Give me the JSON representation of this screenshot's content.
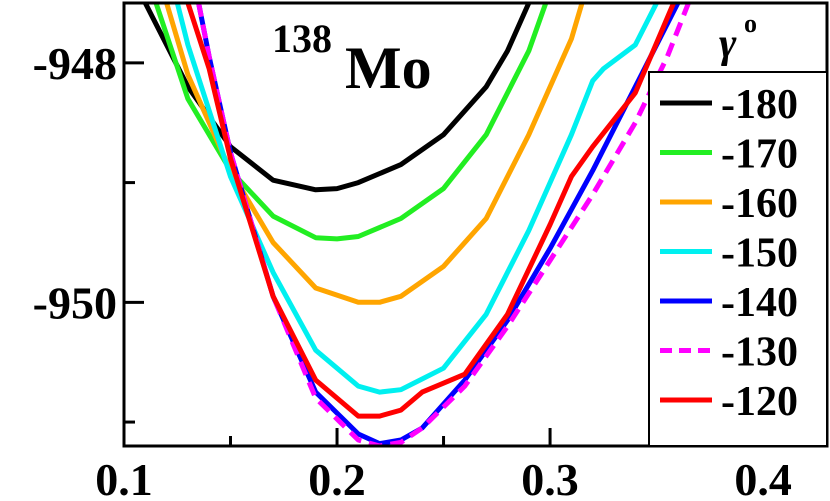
{
  "chart_data": {
    "type": "line",
    "title_mass": "138",
    "title_element": "Mo",
    "xlabel": "",
    "ylabel": "",
    "xlim": [
      0.1,
      0.43
    ],
    "ylim": [
      -951.2,
      -947.5
    ],
    "x_ticks": [
      0.1,
      0.2,
      0.3,
      0.4
    ],
    "x_tick_labels": [
      "0.1",
      "0.2",
      "0.3",
      "0.4"
    ],
    "y_ticks": [
      -948,
      -950
    ],
    "y_tick_labels": [
      "-948",
      "-950"
    ],
    "legend_title": "γ",
    "legend_title_sup": "o",
    "legend_position": "right",
    "series": [
      {
        "name": "-180",
        "color": "#000000",
        "dash": false,
        "x": [
          0.11,
          0.13,
          0.15,
          0.17,
          0.19,
          0.2,
          0.21,
          0.23,
          0.25,
          0.27,
          0.28,
          0.29
        ],
        "y": [
          -947.5,
          -948.2,
          -948.7,
          -948.98,
          -949.06,
          -949.05,
          -949.0,
          -948.85,
          -948.6,
          -948.2,
          -947.9,
          -947.5
        ]
      },
      {
        "name": "-170",
        "color": "#22ee22",
        "dash": false,
        "x": [
          0.115,
          0.13,
          0.15,
          0.17,
          0.19,
          0.2,
          0.21,
          0.23,
          0.25,
          0.27,
          0.29,
          0.298
        ],
        "y": [
          -947.5,
          -948.3,
          -948.9,
          -949.28,
          -949.46,
          -949.47,
          -949.45,
          -949.3,
          -949.05,
          -948.6,
          -947.9,
          -947.5
        ]
      },
      {
        "name": "-160",
        "color": "#ffa500",
        "dash": false,
        "x": [
          0.12,
          0.13,
          0.15,
          0.17,
          0.19,
          0.21,
          0.22,
          0.23,
          0.25,
          0.27,
          0.29,
          0.31,
          0.315
        ],
        "y": [
          -947.5,
          -948.1,
          -948.9,
          -949.5,
          -949.88,
          -950.0,
          -950.0,
          -949.95,
          -949.7,
          -949.3,
          -948.6,
          -947.8,
          -947.5
        ]
      },
      {
        "name": "-150",
        "color": "#00f0f0",
        "dash": false,
        "x": [
          0.125,
          0.13,
          0.15,
          0.17,
          0.19,
          0.21,
          0.22,
          0.23,
          0.25,
          0.27,
          0.29,
          0.31,
          0.32,
          0.325,
          0.34,
          0.35
        ],
        "y": [
          -947.5,
          -947.85,
          -948.95,
          -949.75,
          -950.4,
          -950.7,
          -950.75,
          -950.73,
          -950.55,
          -950.1,
          -949.4,
          -948.6,
          -948.15,
          -948.05,
          -947.85,
          -947.5
        ]
      },
      {
        "name": "-140",
        "color": "#0000ff",
        "dash": false,
        "x": [
          0.135,
          0.14,
          0.15,
          0.17,
          0.19,
          0.21,
          0.22,
          0.23,
          0.24,
          0.26,
          0.28,
          0.3,
          0.32,
          0.34,
          0.36
        ],
        "y": [
          -947.5,
          -947.95,
          -948.75,
          -949.95,
          -950.75,
          -951.1,
          -951.18,
          -951.15,
          -951.05,
          -950.65,
          -950.15,
          -949.55,
          -948.9,
          -948.2,
          -947.5
        ]
      },
      {
        "name": "-130",
        "color": "#ff00ff",
        "dash": true,
        "x": [
          0.135,
          0.14,
          0.15,
          0.17,
          0.19,
          0.21,
          0.22,
          0.23,
          0.24,
          0.26,
          0.28,
          0.3,
          0.32,
          0.34,
          0.355,
          0.365
        ],
        "y": [
          -947.5,
          -947.95,
          -948.75,
          -949.95,
          -950.8,
          -951.15,
          -951.2,
          -951.17,
          -951.05,
          -950.7,
          -950.2,
          -949.65,
          -949.1,
          -948.5,
          -947.95,
          -947.5
        ]
      },
      {
        "name": "-120",
        "color": "#ff0000",
        "dash": false,
        "x": [
          0.13,
          0.14,
          0.15,
          0.17,
          0.19,
          0.21,
          0.22,
          0.23,
          0.24,
          0.26,
          0.28,
          0.3,
          0.31,
          0.32,
          0.34,
          0.358
        ],
        "y": [
          -947.5,
          -948.05,
          -948.8,
          -949.95,
          -950.65,
          -950.95,
          -950.95,
          -950.9,
          -950.75,
          -950.6,
          -950.1,
          -949.35,
          -948.95,
          -948.7,
          -948.25,
          -947.5
        ]
      }
    ]
  }
}
